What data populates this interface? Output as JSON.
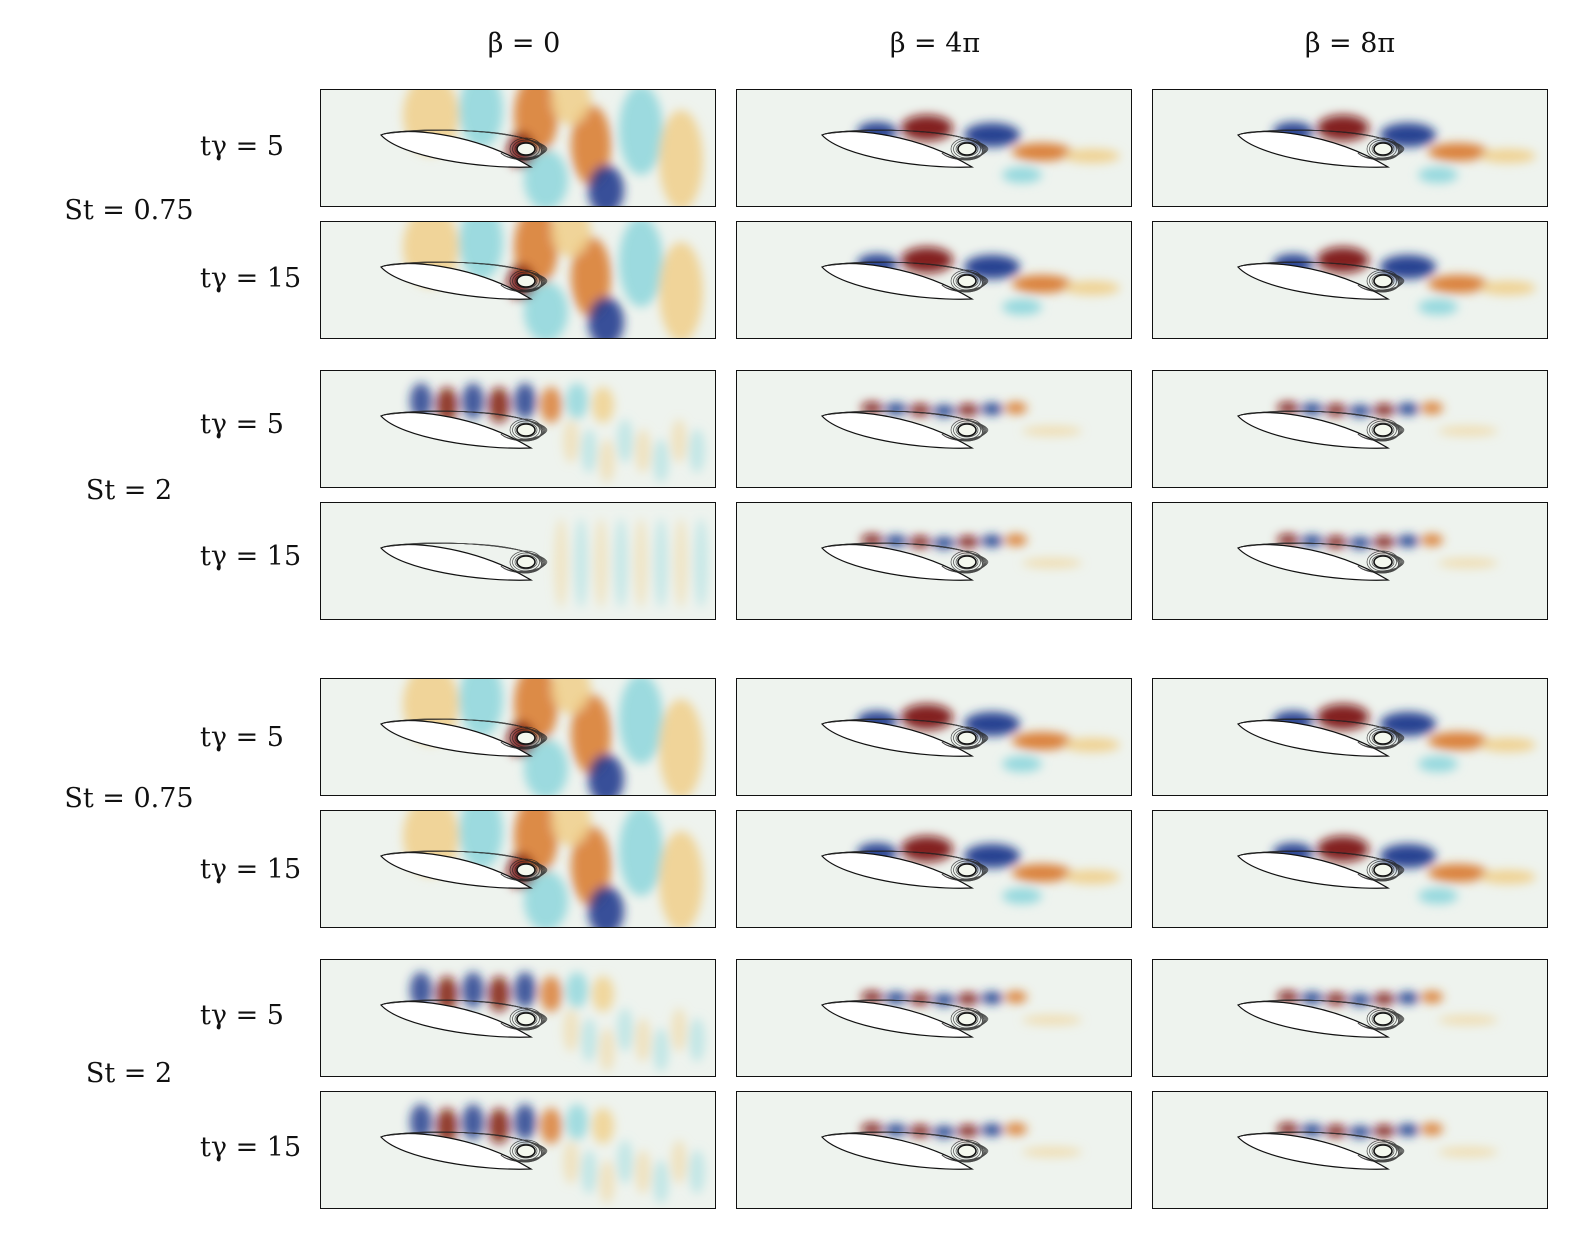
{
  "columns": [
    "β = 0",
    "β = 4π",
    "β = 8π"
  ],
  "row_labels": [
    "tγ = 5",
    "tγ = 15",
    "tγ = 5",
    "tγ = 15",
    "tγ = 5",
    "tγ = 15",
    "tγ = 5",
    "tγ = 15"
  ],
  "group_labels": [
    "St = 0.75",
    "St = 2",
    "St = 0.75",
    "St = 2"
  ],
  "colors": {
    "red": "#7a1208",
    "orange": "#d9782a",
    "yellow": "#f0cf8a",
    "cyan": "#8dd6dc",
    "blue": "#16338a",
    "background": "#eef3ee"
  },
  "panels": [
    {
      "style": "low",
      "beta": 0
    },
    {
      "style": "low",
      "beta": 4
    },
    {
      "style": "low",
      "beta": 8
    },
    {
      "style": "low",
      "beta": 0
    },
    {
      "style": "low",
      "beta": 4
    },
    {
      "style": "low",
      "beta": 8
    },
    {
      "style": "high",
      "beta": 0
    },
    {
      "style": "high",
      "beta": 4
    },
    {
      "style": "high",
      "beta": 8
    },
    {
      "style": "high-faint",
      "beta": 0
    },
    {
      "style": "high",
      "beta": 4
    },
    {
      "style": "high",
      "beta": 8
    },
    {
      "style": "low",
      "beta": 0
    },
    {
      "style": "low",
      "beta": 4
    },
    {
      "style": "low",
      "beta": 8
    },
    {
      "style": "low",
      "beta": 0
    },
    {
      "style": "low",
      "beta": 4
    },
    {
      "style": "low",
      "beta": 8
    },
    {
      "style": "high",
      "beta": 0
    },
    {
      "style": "high",
      "beta": 4
    },
    {
      "style": "high",
      "beta": 8
    },
    {
      "style": "high",
      "beta": 0
    },
    {
      "style": "high",
      "beta": 4
    },
    {
      "style": "high",
      "beta": 8
    }
  ]
}
